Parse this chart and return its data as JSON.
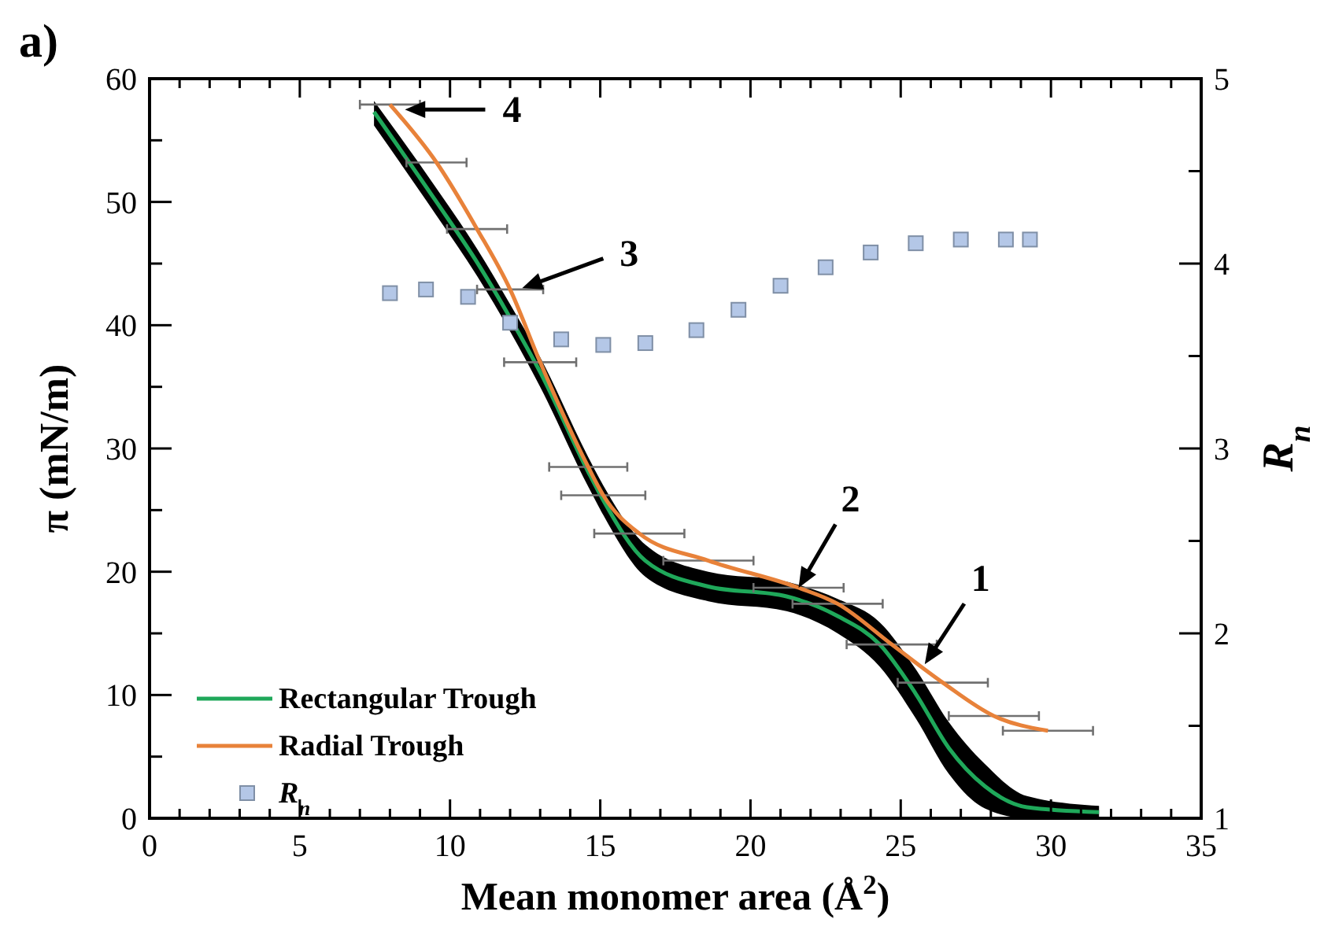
{
  "chart_data": {
    "type": "line",
    "xlabel": "Mean monomer area (Å$^{2}$)",
    "ylabel": "π (mN/m)",
    "y2label": "R$_{n}$",
    "xlim": [
      0,
      35
    ],
    "xticks": [
      0,
      5,
      10,
      15,
      20,
      25,
      30,
      35
    ],
    "ylim": [
      0,
      60
    ],
    "yticks": [
      0,
      10,
      20,
      30,
      40,
      50,
      60
    ],
    "y2lim": [
      1,
      5
    ],
    "y2ticks": [
      1,
      2,
      3,
      4,
      5
    ],
    "legend": "bottom left",
    "grid": false,
    "annotations": [
      "a)",
      {
        "text": "4",
        "x": 8.5,
        "y": 57.5
      },
      {
        "text": "3",
        "x": 12.4,
        "y": 43
      },
      {
        "text": "2",
        "x": 21.6,
        "y": 18.7
      },
      {
        "text": "1",
        "x": 25.8,
        "y": 12.5
      }
    ],
    "series": [
      {
        "name": "Rectangular Trough",
        "color": "#1fa85a",
        "marker": "none",
        "x": [
          7.47,
          9.55,
          10.9,
          12.0,
          13.0,
          14.6,
          15.1,
          16.5,
          18.6,
          21.2,
          22.9,
          24.3,
          25.5,
          26.6,
          27.8,
          29.2,
          31.6
        ],
        "values": [
          57.3,
          50,
          45.1,
          40.6,
          36.2,
          28.1,
          25.8,
          20.9,
          18.8,
          18.0,
          16.4,
          14.1,
          10.1,
          5.7,
          2.6,
          0.9,
          0.5
        ],
        "lower": [
          56.2,
          48.9,
          44,
          39.5,
          35,
          26.9,
          24.6,
          19.6,
          17.6,
          16.8,
          15,
          12.3,
          8.1,
          3.6,
          0.8,
          0,
          0
        ],
        "upper": [
          58.2,
          51.1,
          46.2,
          41.7,
          37.4,
          29.3,
          27,
          22.2,
          20,
          19.2,
          17.8,
          15.9,
          12.1,
          7.8,
          4.4,
          1.8,
          1.0
        ]
      },
      {
        "name": "Radial Trough",
        "color": "#e8823a",
        "marker": "none",
        "x": [
          8.0,
          9.55,
          10.9,
          12.0,
          13.0,
          14.6,
          15.1,
          16.3,
          18.6,
          21.6,
          22.9,
          24.7,
          26.4,
          28.1,
          29.9
        ],
        "values": [
          57.9,
          53.2,
          47.8,
          42.9,
          37.0,
          28.5,
          26.2,
          23.1,
          20.9,
          18.7,
          17.4,
          14.1,
          11.0,
          8.3,
          7.1
        ],
        "xerrors": [
          1.0,
          1.0,
          1.0,
          1.1,
          1.2,
          1.3,
          1.4,
          1.5,
          1.5,
          1.5,
          1.5,
          1.5,
          1.5,
          1.5,
          1.5
        ]
      },
      {
        "name": "R$_{n}$",
        "type": "scatter",
        "axis": "y2",
        "color": "#b4c7e7",
        "marker": "square",
        "x": [
          8.0,
          9.2,
          10.6,
          12.0,
          13.7,
          15.1,
          16.5,
          18.2,
          19.6,
          21.0,
          22.5,
          24.0,
          25.5,
          27.0,
          28.5,
          29.3
        ],
        "values": [
          3.84,
          3.86,
          3.82,
          3.68,
          3.59,
          3.56,
          3.57,
          3.64,
          3.75,
          3.88,
          3.98,
          4.06,
          4.11,
          4.13,
          4.13,
          4.13
        ]
      }
    ]
  }
}
